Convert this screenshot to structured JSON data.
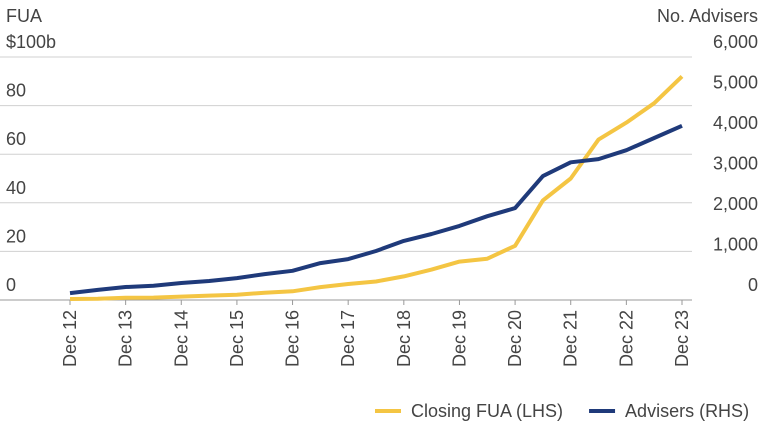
{
  "chart_data": {
    "type": "line",
    "ylabel": "FUA",
    "y2label": "No. Advisers",
    "categories": [
      "Dec 12",
      null,
      "Dec 13",
      null,
      "Dec 14",
      null,
      "Dec 15",
      null,
      "Dec 16",
      null,
      "Dec 17",
      null,
      "Dec 18",
      null,
      "Dec 19",
      null,
      "Dec 20",
      null,
      "Dec 21",
      null,
      "Dec 22",
      null,
      "Dec 23"
    ],
    "series": [
      {
        "name": "Closing FUA (LHS)",
        "color": "#f4c543",
        "values": [
          0.4,
          0.5,
          0.9,
          1.0,
          1.4,
          1.8,
          2.2,
          3.0,
          3.6,
          5.3,
          6.6,
          7.6,
          9.7,
          12.5,
          15.8,
          17.0,
          22.3,
          41,
          50,
          66,
          73,
          81,
          92
        ]
      },
      {
        "name": "Advisers (RHS)",
        "color": "#1f3a7a",
        "axis": "y2",
        "values": [
          170,
          250,
          320,
          350,
          420,
          470,
          540,
          640,
          720,
          910,
          1010,
          1210,
          1460,
          1630,
          1830,
          2070,
          2270,
          3060,
          3400,
          3480,
          3700,
          4000,
          4300
        ]
      }
    ],
    "ylim": [
      0,
      100
    ],
    "yticks": [
      0,
      20,
      40,
      60,
      80,
      {
        "value": 100,
        "label": "$100b"
      }
    ],
    "y2lim": [
      0,
      6000
    ],
    "y2ticks": [
      0,
      {
        "value": 1000,
        "label": "1,000"
      },
      {
        "value": 2000,
        "label": "2,000"
      },
      {
        "value": 3000,
        "label": "3,000"
      },
      {
        "value": 4000,
        "label": "4,000"
      },
      {
        "value": 5000,
        "label": "5,000"
      },
      {
        "value": 6000,
        "label": "6,000"
      }
    ],
    "grid": true,
    "legend": "bottom-right"
  }
}
